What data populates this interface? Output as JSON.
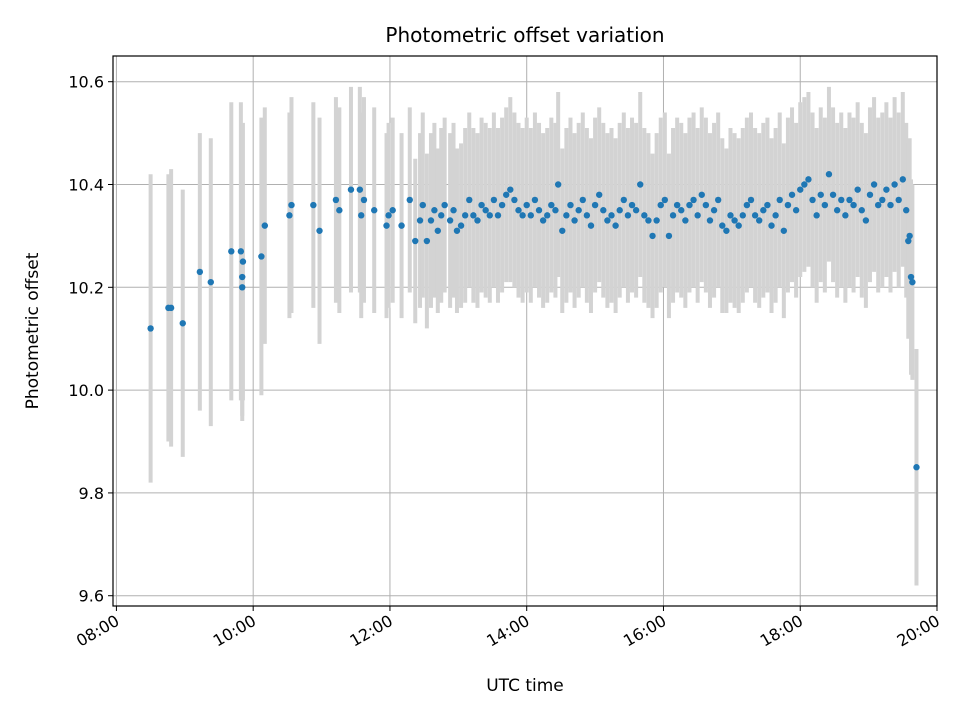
{
  "chart_data": {
    "type": "scatter",
    "title": "Photometric offset variation",
    "xlabel": "UTC time",
    "ylabel": "Photometric offset",
    "x_unit": "hours (UTC)",
    "xlim": [
      7.95,
      20.0
    ],
    "ylim": [
      9.58,
      10.65
    ],
    "grid": true,
    "x_ticks": [
      8,
      10,
      12,
      14,
      16,
      18,
      20
    ],
    "x_tick_labels": [
      "08:00",
      "10:00",
      "12:00",
      "14:00",
      "16:00",
      "18:00",
      "20:00"
    ],
    "y_ticks": [
      9.6,
      9.8,
      10.0,
      10.2,
      10.4,
      10.6
    ],
    "y_tick_labels": [
      "9.6",
      "9.8",
      "10.0",
      "10.2",
      "10.4",
      "10.6"
    ],
    "marker_color": "#1f77b4",
    "errorbar_color": "#d3d3d3",
    "series": [
      {
        "points": [
          [
            8.5,
            10.12,
            0.3
          ],
          [
            8.76,
            10.16,
            0.26
          ],
          [
            8.8,
            10.16,
            0.27
          ],
          [
            8.97,
            10.13,
            0.26
          ],
          [
            9.22,
            10.23,
            0.27
          ],
          [
            9.38,
            10.21,
            0.28
          ],
          [
            9.68,
            10.27,
            0.29
          ],
          [
            9.82,
            10.27,
            0.29
          ],
          [
            9.84,
            10.2,
            0.26
          ],
          [
            9.84,
            10.22,
            0.27
          ],
          [
            9.85,
            10.25,
            0.27
          ],
          [
            10.12,
            10.26,
            0.27
          ],
          [
            10.17,
            10.32,
            0.23
          ],
          [
            10.53,
            10.34,
            0.2
          ],
          [
            10.56,
            10.36,
            0.21
          ],
          [
            10.88,
            10.36,
            0.2
          ],
          [
            10.97,
            10.31,
            0.22
          ],
          [
            11.21,
            10.37,
            0.2
          ],
          [
            11.26,
            10.35,
            0.2
          ],
          [
            11.43,
            10.39,
            0.2
          ],
          [
            11.56,
            10.39,
            0.2
          ],
          [
            11.58,
            10.34,
            0.2
          ],
          [
            11.62,
            10.37,
            0.2
          ],
          [
            11.77,
            10.35,
            0.2
          ],
          [
            11.95,
            10.32,
            0.18
          ],
          [
            11.98,
            10.34,
            0.18
          ],
          [
            12.04,
            10.35,
            0.18
          ],
          [
            12.17,
            10.32,
            0.18
          ],
          [
            12.29,
            10.37,
            0.18
          ],
          [
            12.37,
            10.29,
            0.16
          ],
          [
            12.44,
            10.33,
            0.17
          ],
          [
            12.48,
            10.36,
            0.18
          ],
          [
            12.54,
            10.29,
            0.17
          ],
          [
            12.6,
            10.33,
            0.17
          ],
          [
            12.65,
            10.35,
            0.17
          ],
          [
            12.7,
            10.31,
            0.16
          ],
          [
            12.75,
            10.34,
            0.17
          ],
          [
            12.8,
            10.36,
            0.17
          ],
          [
            12.88,
            10.33,
            0.17
          ],
          [
            12.93,
            10.35,
            0.17
          ],
          [
            12.98,
            10.31,
            0.16
          ],
          [
            13.04,
            10.32,
            0.16
          ],
          [
            13.1,
            10.34,
            0.17
          ],
          [
            13.16,
            10.37,
            0.17
          ],
          [
            13.22,
            10.34,
            0.17
          ],
          [
            13.28,
            10.33,
            0.17
          ],
          [
            13.34,
            10.36,
            0.17
          ],
          [
            13.4,
            10.35,
            0.17
          ],
          [
            13.46,
            10.34,
            0.17
          ],
          [
            13.52,
            10.37,
            0.17
          ],
          [
            13.58,
            10.34,
            0.17
          ],
          [
            13.64,
            10.36,
            0.17
          ],
          [
            13.7,
            10.38,
            0.17
          ],
          [
            13.76,
            10.39,
            0.18
          ],
          [
            13.82,
            10.37,
            0.17
          ],
          [
            13.88,
            10.35,
            0.17
          ],
          [
            13.94,
            10.34,
            0.17
          ],
          [
            14.0,
            10.36,
            0.17
          ],
          [
            14.06,
            10.34,
            0.17
          ],
          [
            14.12,
            10.37,
            0.17
          ],
          [
            14.18,
            10.35,
            0.17
          ],
          [
            14.24,
            10.33,
            0.17
          ],
          [
            14.3,
            10.34,
            0.17
          ],
          [
            14.36,
            10.36,
            0.17
          ],
          [
            14.42,
            10.35,
            0.17
          ],
          [
            14.46,
            10.4,
            0.18
          ],
          [
            14.52,
            10.31,
            0.16
          ],
          [
            14.58,
            10.34,
            0.17
          ],
          [
            14.64,
            10.36,
            0.17
          ],
          [
            14.7,
            10.33,
            0.17
          ],
          [
            14.76,
            10.35,
            0.17
          ],
          [
            14.82,
            10.37,
            0.17
          ],
          [
            14.88,
            10.34,
            0.17
          ],
          [
            14.94,
            10.32,
            0.17
          ],
          [
            15.0,
            10.36,
            0.17
          ],
          [
            15.06,
            10.38,
            0.17
          ],
          [
            15.12,
            10.35,
            0.17
          ],
          [
            15.18,
            10.33,
            0.17
          ],
          [
            15.24,
            10.34,
            0.17
          ],
          [
            15.3,
            10.32,
            0.17
          ],
          [
            15.36,
            10.35,
            0.17
          ],
          [
            15.42,
            10.37,
            0.17
          ],
          [
            15.48,
            10.34,
            0.17
          ],
          [
            15.54,
            10.36,
            0.17
          ],
          [
            15.6,
            10.35,
            0.17
          ],
          [
            15.66,
            10.4,
            0.18
          ],
          [
            15.72,
            10.34,
            0.17
          ],
          [
            15.78,
            10.33,
            0.17
          ],
          [
            15.84,
            10.3,
            0.16
          ],
          [
            15.9,
            10.33,
            0.17
          ],
          [
            15.96,
            10.36,
            0.17
          ],
          [
            16.02,
            10.37,
            0.17
          ],
          [
            16.08,
            10.3,
            0.16
          ],
          [
            16.14,
            10.34,
            0.17
          ],
          [
            16.2,
            10.36,
            0.17
          ],
          [
            16.26,
            10.35,
            0.17
          ],
          [
            16.32,
            10.33,
            0.17
          ],
          [
            16.38,
            10.36,
            0.17
          ],
          [
            16.44,
            10.37,
            0.17
          ],
          [
            16.5,
            10.34,
            0.17
          ],
          [
            16.56,
            10.38,
            0.17
          ],
          [
            16.62,
            10.36,
            0.17
          ],
          [
            16.68,
            10.33,
            0.17
          ],
          [
            16.74,
            10.35,
            0.17
          ],
          [
            16.8,
            10.37,
            0.17
          ],
          [
            16.86,
            10.32,
            0.17
          ],
          [
            16.92,
            10.31,
            0.16
          ],
          [
            16.98,
            10.34,
            0.17
          ],
          [
            17.04,
            10.33,
            0.17
          ],
          [
            17.1,
            10.32,
            0.17
          ],
          [
            17.16,
            10.34,
            0.17
          ],
          [
            17.22,
            10.36,
            0.17
          ],
          [
            17.28,
            10.37,
            0.17
          ],
          [
            17.34,
            10.34,
            0.17
          ],
          [
            17.4,
            10.33,
            0.17
          ],
          [
            17.46,
            10.35,
            0.17
          ],
          [
            17.52,
            10.36,
            0.17
          ],
          [
            17.58,
            10.32,
            0.17
          ],
          [
            17.64,
            10.34,
            0.17
          ],
          [
            17.7,
            10.37,
            0.17
          ],
          [
            17.76,
            10.31,
            0.17
          ],
          [
            17.82,
            10.36,
            0.17
          ],
          [
            17.88,
            10.38,
            0.17
          ],
          [
            17.94,
            10.35,
            0.17
          ],
          [
            18.0,
            10.39,
            0.17
          ],
          [
            18.06,
            10.4,
            0.17
          ],
          [
            18.12,
            10.41,
            0.17
          ],
          [
            18.18,
            10.37,
            0.17
          ],
          [
            18.24,
            10.34,
            0.17
          ],
          [
            18.3,
            10.38,
            0.17
          ],
          [
            18.36,
            10.36,
            0.17
          ],
          [
            18.42,
            10.42,
            0.17
          ],
          [
            18.48,
            10.38,
            0.17
          ],
          [
            18.54,
            10.35,
            0.17
          ],
          [
            18.6,
            10.37,
            0.17
          ],
          [
            18.66,
            10.34,
            0.17
          ],
          [
            18.72,
            10.37,
            0.17
          ],
          [
            18.78,
            10.36,
            0.17
          ],
          [
            18.84,
            10.39,
            0.17
          ],
          [
            18.9,
            10.35,
            0.17
          ],
          [
            18.96,
            10.33,
            0.17
          ],
          [
            19.02,
            10.38,
            0.17
          ],
          [
            19.08,
            10.4,
            0.17
          ],
          [
            19.14,
            10.36,
            0.17
          ],
          [
            19.2,
            10.37,
            0.17
          ],
          [
            19.26,
            10.39,
            0.17
          ],
          [
            19.32,
            10.36,
            0.17
          ],
          [
            19.38,
            10.4,
            0.17
          ],
          [
            19.44,
            10.37,
            0.17
          ],
          [
            19.5,
            10.41,
            0.17
          ],
          [
            19.55,
            10.35,
            0.17
          ],
          [
            19.58,
            10.29,
            0.19
          ],
          [
            19.6,
            10.3,
            0.19
          ],
          [
            19.62,
            10.22,
            0.19
          ],
          [
            19.64,
            10.21,
            0.19
          ],
          [
            19.7,
            9.85,
            0.23
          ]
        ]
      }
    ]
  }
}
